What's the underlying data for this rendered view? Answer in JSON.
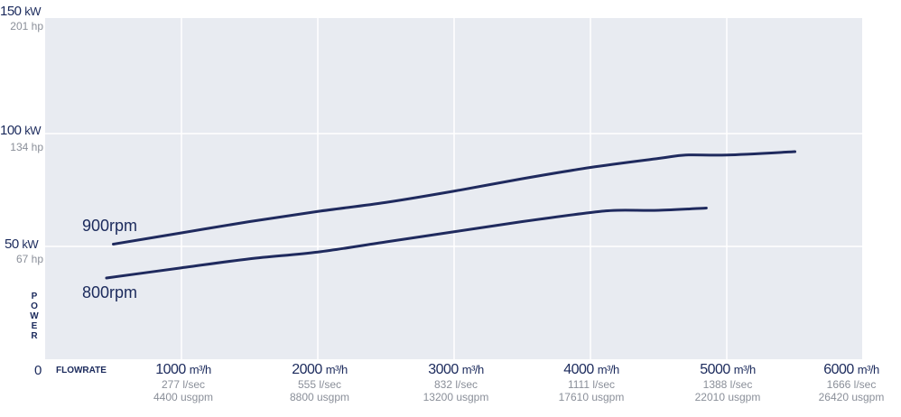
{
  "chart_data": {
    "type": "line",
    "title": "",
    "xlabel": "FLOWRATE",
    "ylabel": "POWER",
    "xlim": [
      0,
      6000
    ],
    "ylim": [
      0,
      150
    ],
    "grid": true,
    "y_ticks": [
      {
        "value": 150,
        "kw": "150",
        "kw_unit": "kW",
        "hp": "201 hp"
      },
      {
        "value": 100,
        "kw": "100",
        "kw_unit": "kW",
        "hp": "134 hp"
      },
      {
        "value": 50,
        "kw": "50",
        "kw_unit": "kW",
        "hp": "67 hp"
      }
    ],
    "y_zero": "0",
    "x_ticks": [
      {
        "value": 1000,
        "m3": "1000",
        "unit": "m³/h",
        "lsec": "277 l/sec",
        "usgpm": "4400 usgpm"
      },
      {
        "value": 2000,
        "m3": "2000",
        "unit": "m³/h",
        "lsec": "555 l/sec",
        "usgpm": "8800 usgpm"
      },
      {
        "value": 3000,
        "m3": "3000",
        "unit": "m³/h",
        "lsec": "832 l/sec",
        "usgpm": "13200 usgpm"
      },
      {
        "value": 4000,
        "m3": "4000",
        "unit": "m³/h",
        "lsec": "1111 l/sec",
        "usgpm": "17610 usgpm"
      },
      {
        "value": 5000,
        "m3": "5000",
        "unit": "m³/h",
        "lsec": "1388 l/sec",
        "usgpm": "22010 usgpm"
      },
      {
        "value": 6000,
        "m3": "6000",
        "unit": "m³/h",
        "lsec": "1666 l/sec",
        "usgpm": "26420 usgpm"
      }
    ],
    "series": [
      {
        "name": "900rpm",
        "x": [
          500,
          1000,
          1500,
          2000,
          2500,
          3000,
          3500,
          4000,
          4500,
          4700,
          5000,
          5500
        ],
        "y": [
          51,
          56,
          61,
          65.5,
          69.5,
          74.5,
          80,
          85,
          89,
          90.5,
          90.5,
          92
        ]
      },
      {
        "name": "800rpm",
        "x": [
          450,
          1000,
          1500,
          2000,
          2500,
          3000,
          3500,
          4000,
          4200,
          4500,
          4850
        ],
        "y": [
          36,
          40.5,
          44.5,
          47.5,
          52,
          56.5,
          61,
          65,
          66,
          66,
          67
        ]
      }
    ],
    "colors": {
      "line": "#1f2a5e",
      "plot_bg": "#e8ebf1",
      "grid": "#ffffff"
    }
  }
}
